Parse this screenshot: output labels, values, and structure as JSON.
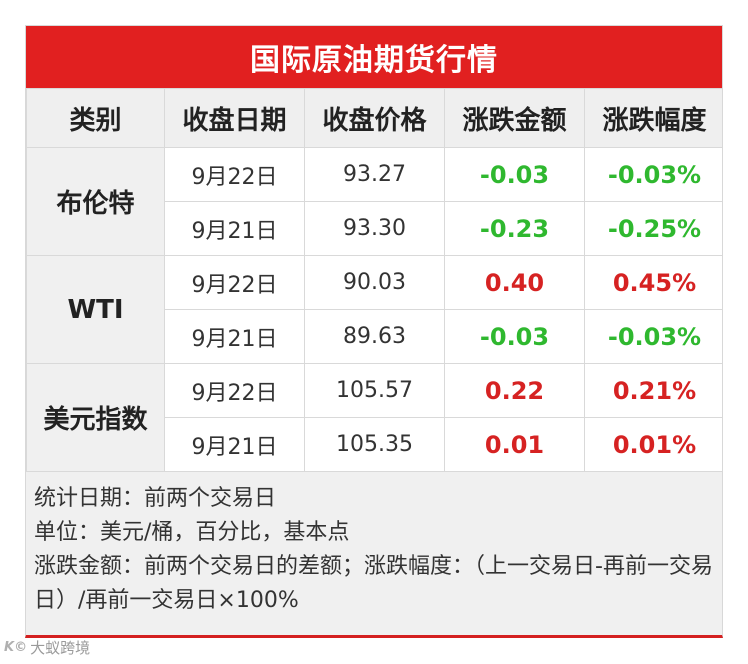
{
  "title": "国际原油期货行情",
  "colors": {
    "banner": "#e12020",
    "negative": "#2fb82f",
    "positive": "#d62222"
  },
  "headers": [
    "类别",
    "收盘日期",
    "收盘价格",
    "涨跌金额",
    "涨跌幅度"
  ],
  "groups": [
    {
      "category": "布伦特",
      "rows": [
        {
          "date": "9月22日",
          "price": "93.27",
          "change": "-0.03",
          "pct": "-0.03%",
          "dir": "neg"
        },
        {
          "date": "9月21日",
          "price": "93.30",
          "change": "-0.23",
          "pct": "-0.25%",
          "dir": "neg"
        }
      ]
    },
    {
      "category": "WTI",
      "rows": [
        {
          "date": "9月22日",
          "price": "90.03",
          "change": "0.40",
          "pct": "0.45%",
          "dir": "pos"
        },
        {
          "date": "9月21日",
          "price": "89.63",
          "change": "-0.03",
          "pct": "-0.03%",
          "dir": "neg"
        }
      ]
    },
    {
      "category": "美元指数",
      "rows": [
        {
          "date": "9月22日",
          "price": "105.57",
          "change": "0.22",
          "pct": "0.21%",
          "dir": "pos"
        },
        {
          "date": "9月21日",
          "price": "105.35",
          "change": "0.01",
          "pct": "0.01%",
          "dir": "pos"
        }
      ]
    }
  ],
  "notes": [
    "统计日期：前两个交易日",
    "单位：美元/桶，百分比，基本点",
    "涨跌金额：前两个交易日的差额；涨跌幅度：（上一交易日-再前一交易日）/再前一交易日×100%"
  ],
  "watermark": {
    "logo": "K©",
    "text": "大蚁跨境"
  }
}
